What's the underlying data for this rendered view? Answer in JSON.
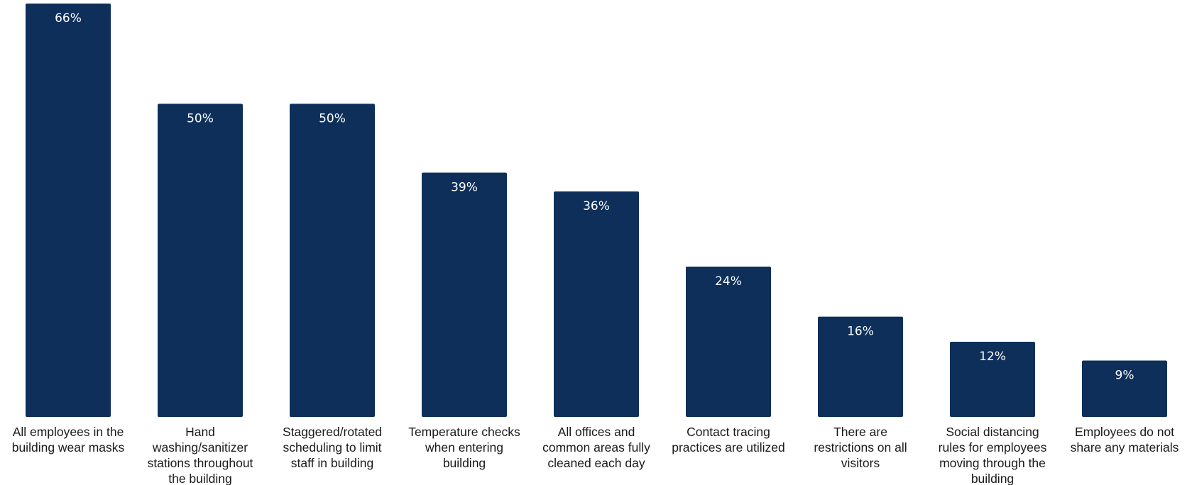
{
  "chart_data": {
    "type": "bar",
    "categories": [
      [
        "All employees in the",
        "building wear masks"
      ],
      [
        "Hand",
        "washing/sanitizer",
        "stations throughout",
        "the building"
      ],
      [
        "Staggered/rotated",
        "scheduling to limit",
        "staff in building"
      ],
      [
        "Temperature checks",
        "when entering",
        "building"
      ],
      [
        "All offices and",
        "common areas fully",
        "cleaned each day"
      ],
      [
        "Contact tracing",
        "practices are utilized"
      ],
      [
        "There are",
        "restrictions on all",
        "visitors"
      ],
      [
        "Social distancing",
        "rules for employees",
        "moving through the",
        "building"
      ],
      [
        "Employees do not",
        "share any materials"
      ]
    ],
    "values": [
      66,
      50,
      50,
      39,
      36,
      24,
      16,
      12,
      9
    ],
    "data_labels": [
      "66%",
      "50%",
      "50%",
      "39%",
      "36%",
      "24%",
      "16%",
      "12%",
      "9%"
    ],
    "ylim": [
      0,
      66
    ],
    "grid": false,
    "legend": "none",
    "bar_color": "#0d2f5a"
  }
}
